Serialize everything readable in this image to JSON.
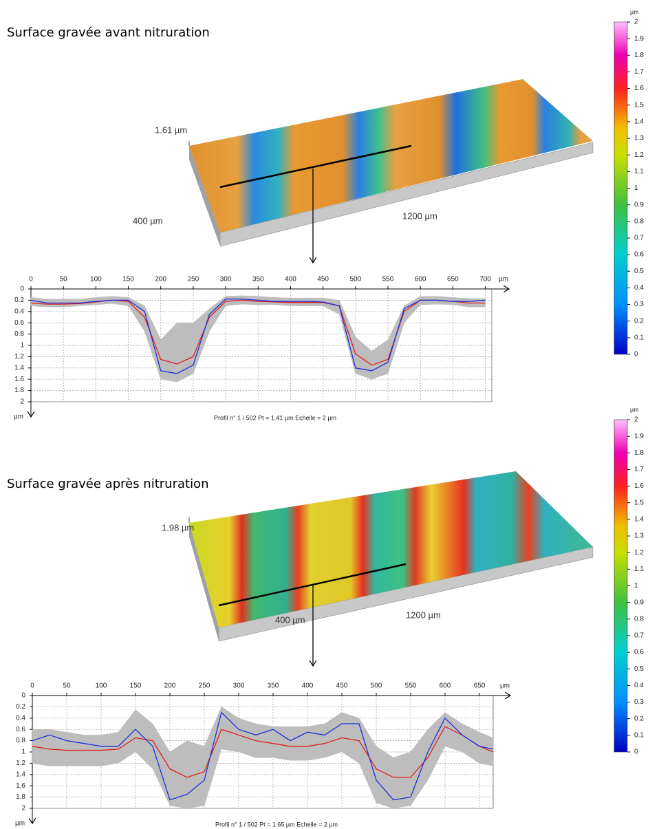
{
  "chart_data": [
    {
      "type": "line",
      "title": "Surface gravée avant nitruration",
      "surface": {
        "height_label": "1.61 µm",
        "width_label": "400 µm",
        "length_label": "1200 µm"
      },
      "colorbar": {
        "unit": "µm",
        "lim": [
          0,
          2
        ],
        "ticks": [
          0,
          0.1,
          0.2,
          0.3,
          0.4,
          0.5,
          0.6,
          0.7,
          0.8,
          0.9,
          1,
          1.1,
          1.2,
          1.3,
          1.4,
          1.5,
          1.6,
          1.7,
          1.8,
          1.9,
          2
        ]
      },
      "x_unit": "µm",
      "y_unit": "µm",
      "caption": "Profil n° 1 / 502 Pt = 1.41 µm  Echelle = 2 µm",
      "xlim": [
        0,
        710
      ],
      "xticks": [
        0,
        50,
        100,
        150,
        200,
        250,
        300,
        350,
        400,
        450,
        500,
        550,
        600,
        650,
        700
      ],
      "ylim": [
        0,
        2
      ],
      "yticks": [
        0,
        0.2,
        0.4,
        0.6,
        0.8,
        1,
        1.2,
        1.4,
        1.6,
        1.8,
        2
      ],
      "y_inverted": true,
      "grid": true,
      "x": [
        0,
        25,
        50,
        75,
        100,
        125,
        150,
        175,
        200,
        225,
        250,
        275,
        300,
        325,
        350,
        375,
        400,
        425,
        450,
        475,
        500,
        525,
        550,
        575,
        600,
        625,
        650,
        675,
        700
      ],
      "envelope": {
        "color": "#bdbdbd",
        "min": [
          0.15,
          0.18,
          0.18,
          0.18,
          0.15,
          0.13,
          0.15,
          0.3,
          0.9,
          0.6,
          0.6,
          0.35,
          0.13,
          0.12,
          0.13,
          0.15,
          0.16,
          0.16,
          0.16,
          0.2,
          0.85,
          1.1,
          0.9,
          0.3,
          0.13,
          0.13,
          0.15,
          0.17,
          0.17
        ],
        "max": [
          0.3,
          0.32,
          0.32,
          0.3,
          0.28,
          0.26,
          0.3,
          0.75,
          1.6,
          1.65,
          1.5,
          0.75,
          0.3,
          0.27,
          0.28,
          0.28,
          0.3,
          0.3,
          0.3,
          0.45,
          1.5,
          1.6,
          1.5,
          0.6,
          0.28,
          0.27,
          0.28,
          0.32,
          0.32
        ]
      },
      "series": [
        {
          "color": "#e0201c",
          "values": [
            0.25,
            0.27,
            0.27,
            0.26,
            0.23,
            0.2,
            0.22,
            0.5,
            1.25,
            1.33,
            1.2,
            0.5,
            0.22,
            0.2,
            0.22,
            0.23,
            0.24,
            0.24,
            0.24,
            0.3,
            1.15,
            1.35,
            1.25,
            0.4,
            0.2,
            0.2,
            0.22,
            0.25,
            0.25
          ]
        },
        {
          "color": "#1c2fd8",
          "values": [
            0.2,
            0.25,
            0.25,
            0.25,
            0.22,
            0.2,
            0.2,
            0.4,
            1.45,
            1.5,
            1.35,
            0.45,
            0.18,
            0.18,
            0.2,
            0.22,
            0.22,
            0.22,
            0.23,
            0.3,
            1.4,
            1.45,
            1.3,
            0.35,
            0.2,
            0.2,
            0.22,
            0.22,
            0.2
          ]
        }
      ]
    },
    {
      "type": "line",
      "title": "Surface gravée après nitruration",
      "surface": {
        "height_label": "1.98 µm",
        "width_label": "400 µm",
        "length_label": "1200 µm"
      },
      "colorbar": {
        "unit": "µm",
        "lim": [
          0,
          2
        ],
        "ticks": [
          0,
          0.1,
          0.2,
          0.3,
          0.4,
          0.5,
          0.6,
          0.7,
          0.8,
          0.9,
          1,
          1.1,
          1.2,
          1.3,
          1.4,
          1.5,
          1.6,
          1.7,
          1.8,
          1.9,
          2
        ]
      },
      "x_unit": "µm",
      "y_unit": "µm",
      "caption": "Profil n° 1 / 502 Pt = 1.65 µm  Echelle = 2 µm",
      "xlim": [
        0,
        670
      ],
      "xticks": [
        0,
        50,
        100,
        150,
        200,
        250,
        300,
        350,
        400,
        450,
        500,
        550,
        600,
        650
      ],
      "ylim": [
        0,
        2
      ],
      "yticks": [
        0,
        0.2,
        0.4,
        0.6,
        0.8,
        1,
        1.2,
        1.4,
        1.6,
        1.8,
        2
      ],
      "y_inverted": true,
      "grid": true,
      "x": [
        0,
        25,
        50,
        75,
        100,
        125,
        150,
        175,
        200,
        225,
        250,
        275,
        300,
        325,
        350,
        375,
        400,
        425,
        450,
        475,
        500,
        525,
        550,
        575,
        600,
        625,
        650,
        670
      ],
      "envelope": {
        "color": "#bdbdbd",
        "min": [
          0.6,
          0.6,
          0.65,
          0.7,
          0.7,
          0.65,
          0.25,
          0.5,
          1.0,
          0.8,
          0.9,
          0.2,
          0.4,
          0.5,
          0.55,
          0.55,
          0.55,
          0.5,
          0.3,
          0.4,
          0.9,
          1.1,
          1.0,
          0.6,
          0.3,
          0.5,
          0.65,
          0.75
        ],
        "max": [
          1.2,
          1.25,
          1.25,
          1.25,
          1.25,
          1.2,
          1.0,
          1.3,
          1.95,
          2,
          1.95,
          0.95,
          1.0,
          1.1,
          1.1,
          1.15,
          1.15,
          1.1,
          1.0,
          1.2,
          1.9,
          2,
          1.95,
          1.5,
          0.9,
          1.0,
          1.2,
          1.25
        ]
      },
      "series": [
        {
          "color": "#e0201c",
          "values": [
            0.9,
            0.95,
            0.97,
            0.97,
            0.97,
            0.95,
            0.75,
            0.8,
            1.3,
            1.45,
            1.35,
            0.6,
            0.7,
            0.8,
            0.85,
            0.9,
            0.9,
            0.85,
            0.75,
            0.8,
            1.3,
            1.45,
            1.45,
            1.1,
            0.55,
            0.7,
            0.9,
            1.0
          ]
        },
        {
          "color": "#1c2fd8",
          "values": [
            0.8,
            0.7,
            0.8,
            0.85,
            0.9,
            0.9,
            0.6,
            0.9,
            1.85,
            1.75,
            1.5,
            0.3,
            0.6,
            0.7,
            0.6,
            0.8,
            0.65,
            0.7,
            0.5,
            0.5,
            1.5,
            1.85,
            1.8,
            1.0,
            0.4,
            0.7,
            0.9,
            0.95
          ]
        }
      ]
    }
  ]
}
